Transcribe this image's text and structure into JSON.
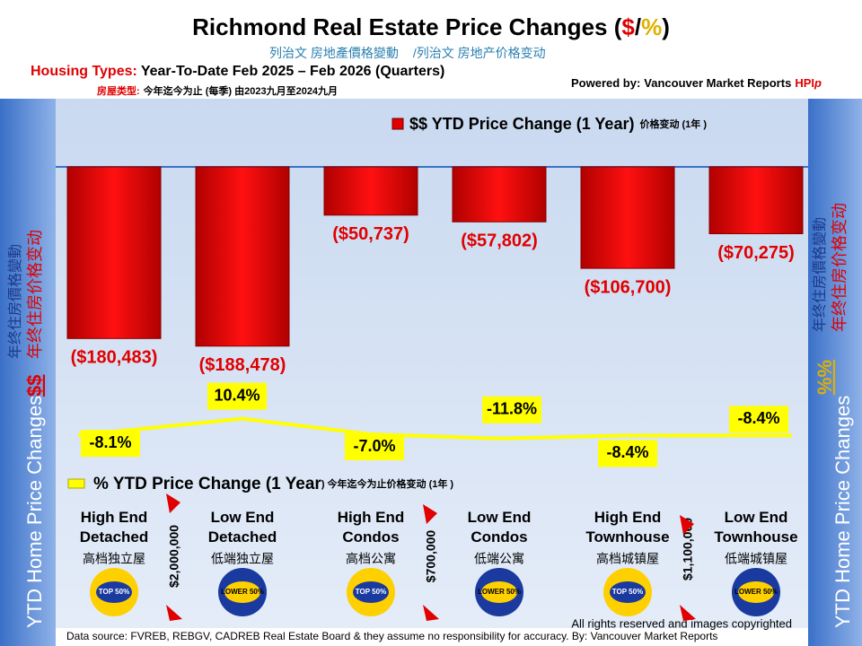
{
  "chart_data": {
    "type": "bar",
    "title": [
      "Richmond Real Estate Price Changes (",
      "$",
      "/",
      "%",
      ")"
    ],
    "subtitle_cn": [
      "列治文 房地產價格變動",
      "/列治文 房地产价格变动"
    ],
    "housing_types": [
      "Housing Types:",
      "Year-To-Date Feb 2025 – Feb 2026 (Quarters)"
    ],
    "housing_types_cn": [
      "房屋类型:",
      "今年迄今为止  (每季) 由2023九月至2024九月"
    ],
    "powered_by": [
      "Powered by:",
      "Vancouver Market Reports",
      "HPI",
      "p"
    ],
    "side_left": [
      "YTD Home Price Changes",
      "$$",
      "年终住房價格變動",
      "年终住房价格变动"
    ],
    "side_right": [
      "YTD Home Price  Changes",
      "%%",
      "年终住房價格變動",
      "年终住房价格变动"
    ],
    "categories": [
      "High End Detached",
      "Low End Detached",
      "High End Condos",
      "Low End Condos",
      "High End Townhouse",
      "Low End Townhouse"
    ],
    "categories_cn": [
      "高档独立屋",
      "低端独立屋",
      "高档公寓",
      "低端公寓",
      "高档城镇屋",
      "低端城镇屋"
    ],
    "badges": [
      "TOP 50%",
      "LOWER 50%",
      "TOP 50%",
      "LOWER 50%",
      "TOP 50%",
      "LOWER 50%"
    ],
    "thresholds": [
      "$2,000,000",
      "$700,000",
      "$1,100,000"
    ],
    "series": [
      {
        "name": "$$ YTD Price Change (1 Year)",
        "name_cn": "价格变动 (1年 )",
        "color": "#e00000",
        "values": [
          -180483,
          -188478,
          -50737,
          -57802,
          -106700,
          -70275
        ],
        "value_labels": [
          "($180,483)",
          "($188,478)",
          "($50,737)",
          "($57,802)",
          "($106,700)",
          "($70,275)"
        ]
      },
      {
        "name": "% YTD Price Change (1 Year",
        "name_cn": ") 今年迄今为止价格变动 (1年 )",
        "color": "#ffff00",
        "axis": "y2",
        "values": [
          -8.1,
          10.4,
          -7.0,
          -11.8,
          -8.4,
          -8.4
        ],
        "value_labels": [
          "-8.1%",
          "10.4%",
          "-7.0%",
          "-11.8%",
          "-8.4%",
          "-8.4%"
        ]
      }
    ],
    "ylim": [
      -200000,
      0
    ],
    "y2lim": [
      -60,
      60
    ],
    "footer": [
      "All rights reserved and  images copyrighted",
      "Data source: FVREB, REBGV, CADREB Real Estate Board & they assume no responsibility for accuracy. By: Vancouver Market Reports"
    ]
  }
}
